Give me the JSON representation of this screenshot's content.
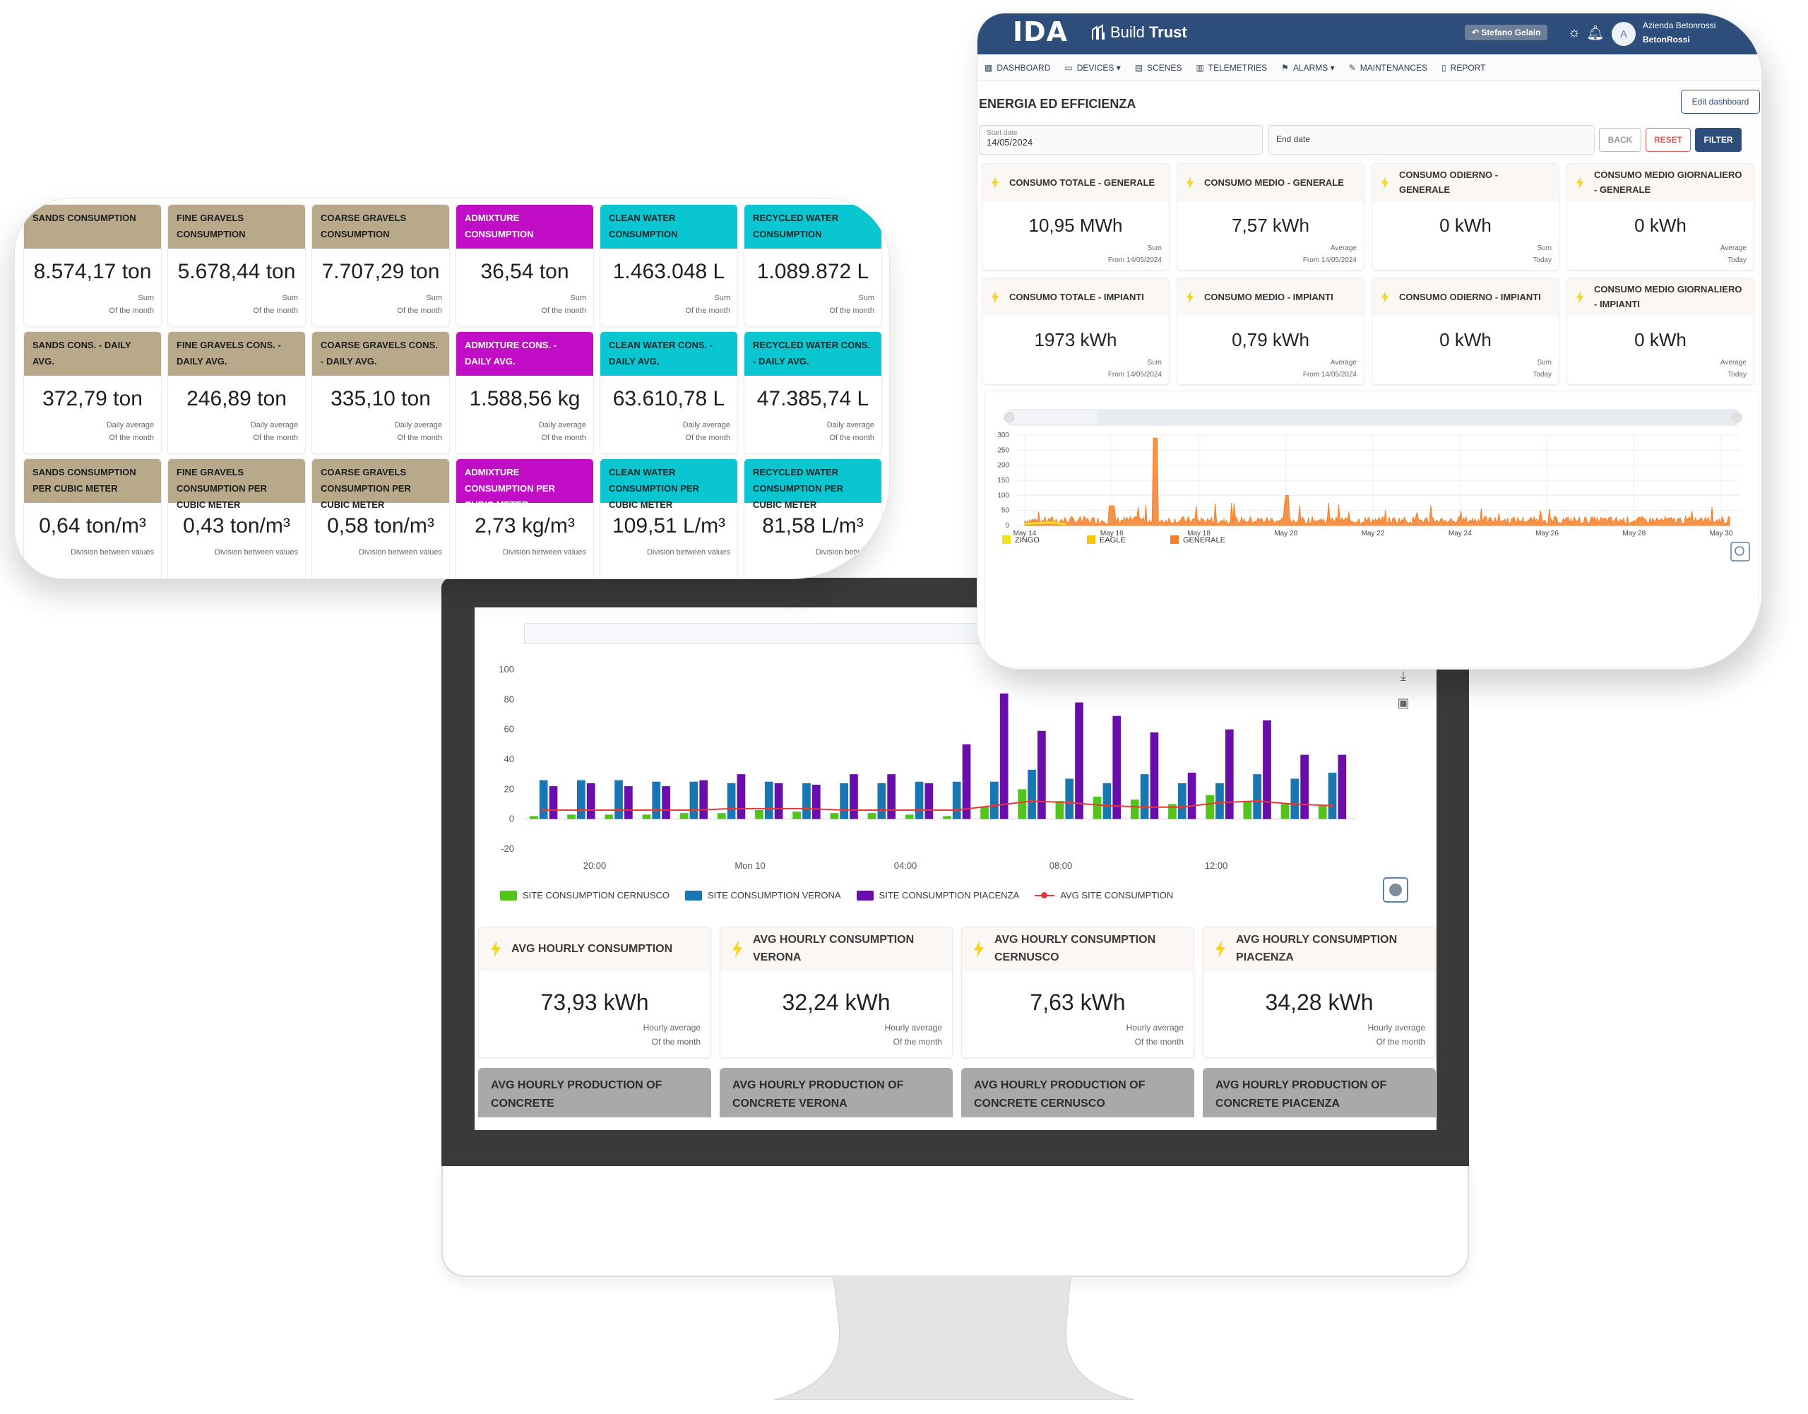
{
  "materials": {
    "tiles": [
      {
        "title": "SANDS CONSUMPTION",
        "value": "8.574,17 ton",
        "sub1": "Sum",
        "sub2": "Of the month",
        "color": "sand"
      },
      {
        "title": "FINE GRAVELS CONSUMPTION",
        "value": "5.678,44 ton",
        "sub1": "Sum",
        "sub2": "Of the month",
        "color": "sand"
      },
      {
        "title": "COARSE GRAVELS CONSUMPTION",
        "value": "7.707,29 ton",
        "sub1": "Sum",
        "sub2": "Of the month",
        "color": "sand"
      },
      {
        "title": "ADMIXTURE CONSUMPTION",
        "value": "36,54 ton",
        "sub1": "Sum",
        "sub2": "Of the month",
        "color": "admix"
      },
      {
        "title": "CLEAN WATER CONSUMPTION",
        "value": "1.463.048 L",
        "sub1": "Sum",
        "sub2": "Of the month",
        "color": "water"
      },
      {
        "title": "RECYCLED WATER CONSUMPTION",
        "value": "1.089.872 L",
        "sub1": "Sum",
        "sub2": "Of the month",
        "color": "water"
      },
      {
        "title": "SANDS CONS. - DAILY AVG.",
        "value": "372,79 ton",
        "sub1": "Daily average",
        "sub2": "Of the month",
        "color": "sand"
      },
      {
        "title": "FINE GRAVELS CONS. - DAILY AVG.",
        "value": "246,89 ton",
        "sub1": "Daily average",
        "sub2": "Of the month",
        "color": "sand"
      },
      {
        "title": "COARSE GRAVELS CONS. - DAILY AVG.",
        "value": "335,10 ton",
        "sub1": "Daily average",
        "sub2": "Of the month",
        "color": "sand"
      },
      {
        "title": "ADMIXTURE CONS. - DAILY AVG.",
        "value": "1.588,56 kg",
        "sub1": "Daily average",
        "sub2": "Of the month",
        "color": "admix"
      },
      {
        "title": "CLEAN WATER CONS. - DAILY AVG.",
        "value": "63.610,78 L",
        "sub1": "Daily average",
        "sub2": "Of the month",
        "color": "water"
      },
      {
        "title": "RECYCLED WATER CONS. - DAILY AVG.",
        "value": "47.385,74 L",
        "sub1": "Daily average",
        "sub2": "Of the month",
        "color": "water"
      },
      {
        "title": "SANDS CONSUMPTION PER CUBIC METER",
        "value": "0,64 ton/m³",
        "sub1": "Division between values",
        "sub2": "",
        "color": "sand"
      },
      {
        "title": "FINE GRAVELS CONSUMPTION PER CUBIC METER",
        "value": "0,43 ton/m³",
        "sub1": "Division between values",
        "sub2": "",
        "color": "sand"
      },
      {
        "title": "COARSE GRAVELS CONSUMPTION PER CUBIC METER",
        "value": "0,58 ton/m³",
        "sub1": "Division between values",
        "sub2": "",
        "color": "sand"
      },
      {
        "title": "ADMIXTURE CONSUMPTION PER CUBIC METER",
        "value": "2,73 kg/m³",
        "sub1": "Division between values",
        "sub2": "",
        "color": "admix"
      },
      {
        "title": "CLEAN WATER CONSUMPTION PER CUBIC METER",
        "value": "109,51 L/m³",
        "sub1": "Division between values",
        "sub2": "",
        "color": "water"
      },
      {
        "title": "RECYCLED WATER CONSUMPTION PER CUBIC METER",
        "value": "81,58 L/m³",
        "sub1": "Division between",
        "sub2": "",
        "color": "water"
      }
    ]
  },
  "ida": {
    "logo": "IDA",
    "buildtrust_a": "Build",
    "buildtrust_b": "Trust",
    "user": "Stefano Gelain",
    "company_line1": "Azienda Betonrossi",
    "company_line2": "BetonRossi",
    "avatar_letter": "A",
    "nav": [
      {
        "label": "DASHBOARD",
        "icon": "dashboard-icon"
      },
      {
        "label": "DEVICES ▾",
        "icon": "devices-icon"
      },
      {
        "label": "SCENES",
        "icon": "scenes-icon"
      },
      {
        "label": "TELEMETRIES",
        "icon": "telemetries-icon"
      },
      {
        "label": "ALARMS ▾",
        "icon": "alarms-icon"
      },
      {
        "label": "MAINTENANCES",
        "icon": "wrench-icon"
      },
      {
        "label": "REPORT",
        "icon": "report-icon"
      }
    ],
    "page_title": "ENERGIA ED EFFICIENZA",
    "edit_label": "Edit dashboard",
    "start_label": "Start date",
    "start_value": "14/05/2024",
    "end_placeholder": "End date",
    "back_label": "BACK",
    "reset_label": "RESET",
    "filter_label": "FILTER",
    "kpis": [
      {
        "title": "CONSUMO TOTALE - GENERALE",
        "value": "10,95 MWh",
        "sub1": "Sum",
        "sub2": "From 14/05/2024"
      },
      {
        "title": "CONSUMO MEDIO - GENERALE",
        "value": "7,57 kWh",
        "sub1": "Average",
        "sub2": "From 14/05/2024"
      },
      {
        "title": "CONSUMO ODIERNO - GENERALE",
        "value": "0 kWh",
        "sub1": "Sum",
        "sub2": "Today"
      },
      {
        "title": "CONSUMO MEDIO GIORNALIERO - GENERALE",
        "value": "0 kWh",
        "sub1": "Average",
        "sub2": "Today"
      },
      {
        "title": "CONSUMO TOTALE - IMPIANTI",
        "value": "1973 kWh",
        "sub1": "Sum",
        "sub2": "From 14/05/2024"
      },
      {
        "title": "CONSUMO MEDIO - IMPIANTI",
        "value": "0,79 kWh",
        "sub1": "Average",
        "sub2": "From 14/05/2024"
      },
      {
        "title": "CONSUMO ODIERNO - IMPIANTI",
        "value": "0 kWh",
        "sub1": "Sum",
        "sub2": "Today"
      },
      {
        "title": "CONSUMO MEDIO GIORNALIERO - IMPIANTI",
        "value": "0 kWh",
        "sub1": "Average",
        "sub2": "Today"
      }
    ]
  },
  "monitor": {
    "kpis": [
      {
        "title": "AVG HOURLY CONSUMPTION",
        "value": "73,93 kWh",
        "sub1": "Hourly average",
        "sub2": "Of the month"
      },
      {
        "title": "AVG HOURLY CONSUMPTION VERONA",
        "value": "32,24 kWh",
        "sub1": "Hourly average",
        "sub2": "Of the month"
      },
      {
        "title": "AVG HOURLY CONSUMPTION CERNUSCO",
        "value": "7,63 kWh",
        "sub1": "Hourly average",
        "sub2": "Of the month"
      },
      {
        "title": "AVG HOURLY CONSUMPTION PIACENZA",
        "value": "34,28 kWh",
        "sub1": "Hourly average",
        "sub2": "Of the month"
      }
    ],
    "production": [
      "AVG HOURLY PRODUCTION OF CONCRETE",
      "AVG HOURLY PRODUCTION OF CONCRETE VERONA",
      "AVG HOURLY PRODUCTION OF CONCRETE CERNUSCO",
      "AVG HOURLY PRODUCTION OF CONCRETE PIACENZA"
    ]
  },
  "colors": {
    "navy": "#2d4e7b",
    "sand": "#b7a98a",
    "admix": "#c20dc7",
    "water": "#0ac6d1",
    "cernusco": "#52c41a",
    "verona": "#1677b3",
    "piacenza": "#6a0dad",
    "avg": "#e53935",
    "generale": "#f5802a",
    "zingo": "#f2e21b",
    "eagle": "#f7c600",
    "bolt": "#f7d51d"
  },
  "chart_data": [
    {
      "type": "bar",
      "ylim": [
        -20,
        100
      ],
      "yticks": [
        -20,
        0,
        20,
        40,
        60,
        80,
        100
      ],
      "xtick_labels": [
        "20:00",
        "Mon 10",
        "04:00",
        "08:00",
        "12:00"
      ],
      "series": [
        {
          "name": "SITE CONSUMPTION CERNUSCO",
          "values": [
            2,
            3,
            3,
            3,
            4,
            4,
            6,
            5,
            4,
            4,
            3,
            2,
            8,
            20,
            12,
            15,
            13,
            10,
            16,
            12,
            10,
            9
          ]
        },
        {
          "name": "SITE CONSUMPTION VERONA",
          "values": [
            26,
            26,
            26,
            25,
            25,
            24,
            25,
            24,
            24,
            24,
            25,
            25,
            25,
            33,
            27,
            24,
            30,
            24,
            24,
            30,
            27,
            31
          ]
        },
        {
          "name": "SITE CONSUMPTION PIACENZA",
          "values": [
            22,
            24,
            22,
            22,
            26,
            30,
            24,
            23,
            30,
            30,
            24,
            50,
            84,
            59,
            78,
            69,
            58,
            31,
            60,
            66,
            43,
            43
          ]
        },
        {
          "name": "AVG SITE CONSUMPTION",
          "values": [
            6,
            6,
            6,
            6,
            6,
            7,
            7,
            7,
            6,
            6,
            6,
            6,
            9,
            12,
            11,
            9,
            8,
            8,
            11,
            12,
            10,
            9
          ]
        }
      ]
    },
    {
      "type": "line",
      "ylim": [
        0,
        300
      ],
      "yticks": [
        0,
        50,
        100,
        150,
        200,
        250,
        300
      ],
      "xtick_labels": [
        "May 14",
        "May 16",
        "May 18",
        "May 20",
        "May 22",
        "May 24",
        "May 26",
        "May 28",
        "May 30"
      ],
      "series": [
        {
          "name": "ZINGO"
        },
        {
          "name": "EAGLE"
        },
        {
          "name": "GENERALE",
          "peaks": [
            {
              "x": "May 17",
              "y": 290
            },
            {
              "x": "May 20",
              "y": 100
            },
            {
              "x": "May 16",
              "y": 65
            }
          ]
        }
      ]
    }
  ]
}
